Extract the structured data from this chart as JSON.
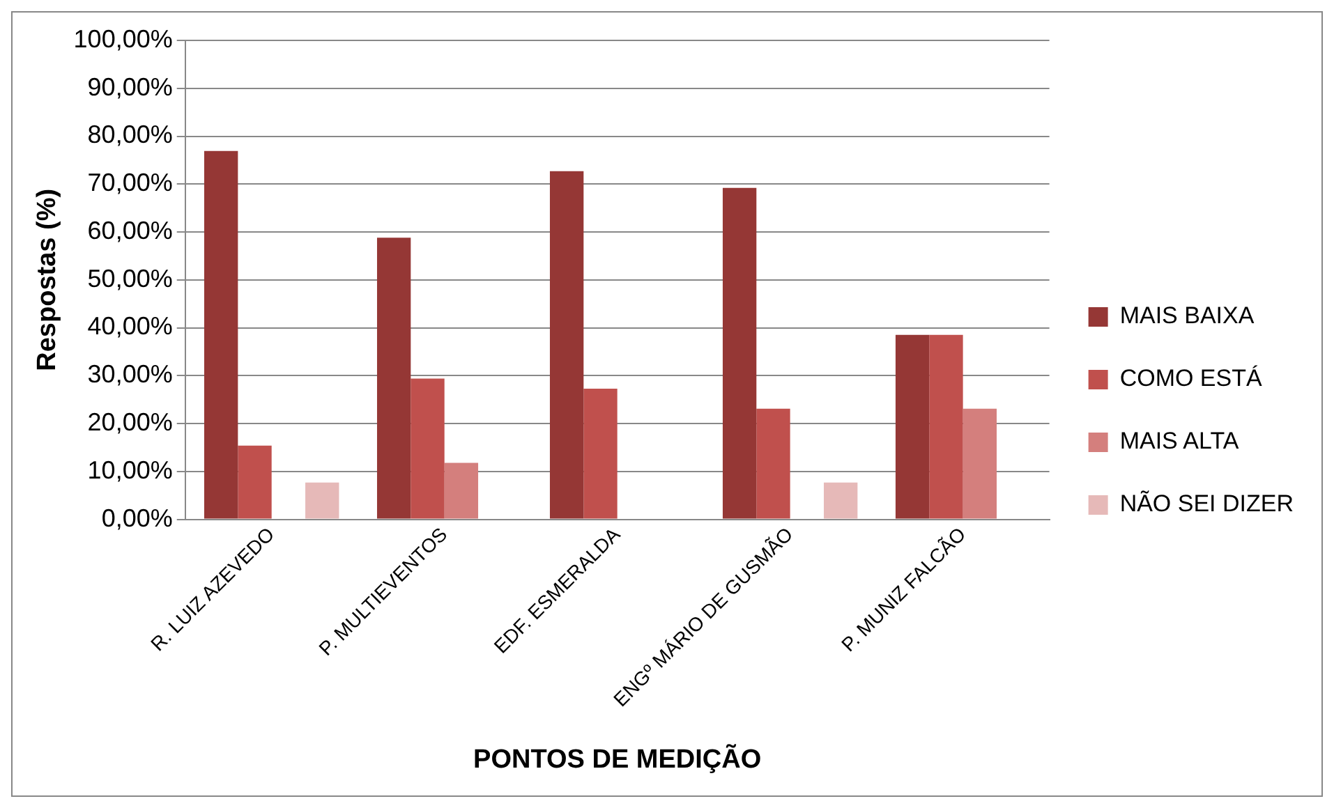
{
  "chart_data": {
    "type": "bar",
    "xlabel": "PONTOS DE MEDIÇÃO",
    "ylabel": "Respostas (%)",
    "categories": [
      "R. LUIZ AZEVEDO",
      "P. MULTIEVENTOS",
      "EDF. ESMERALDA",
      "ENGº MÁRIO DE GUSMÃO",
      "P. MUNIZ FALCÃO"
    ],
    "series": [
      {
        "name": "MAIS BAIXA",
        "color": "#953735",
        "values": [
          76.9,
          58.8,
          72.7,
          69.2,
          38.5
        ]
      },
      {
        "name": "COMO ESTÁ",
        "color": "#c0504d",
        "values": [
          15.4,
          29.4,
          27.3,
          23.1,
          38.5
        ]
      },
      {
        "name": "MAIS ALTA",
        "color": "#d47f7d",
        "values": [
          0,
          11.8,
          0,
          0,
          23.1
        ]
      },
      {
        "name": "NÃO SEI DIZER",
        "color": "#e6b9b8",
        "values": [
          7.7,
          0,
          0,
          7.7,
          0
        ]
      }
    ],
    "ylim": [
      0,
      100
    ],
    "yticks": [
      {
        "value": 0,
        "label": "0,00%"
      },
      {
        "value": 10,
        "label": "10,00%"
      },
      {
        "value": 20,
        "label": "20,00%"
      },
      {
        "value": 30,
        "label": "30,00%"
      },
      {
        "value": 40,
        "label": "40,00%"
      },
      {
        "value": 50,
        "label": "50,00%"
      },
      {
        "value": 60,
        "label": "60,00%"
      },
      {
        "value": 70,
        "label": "70,00%"
      },
      {
        "value": 80,
        "label": "80,00%"
      },
      {
        "value": 90,
        "label": "90,00%"
      },
      {
        "value": 100,
        "label": "100,00%"
      }
    ],
    "grid": "y",
    "legend": "right"
  }
}
